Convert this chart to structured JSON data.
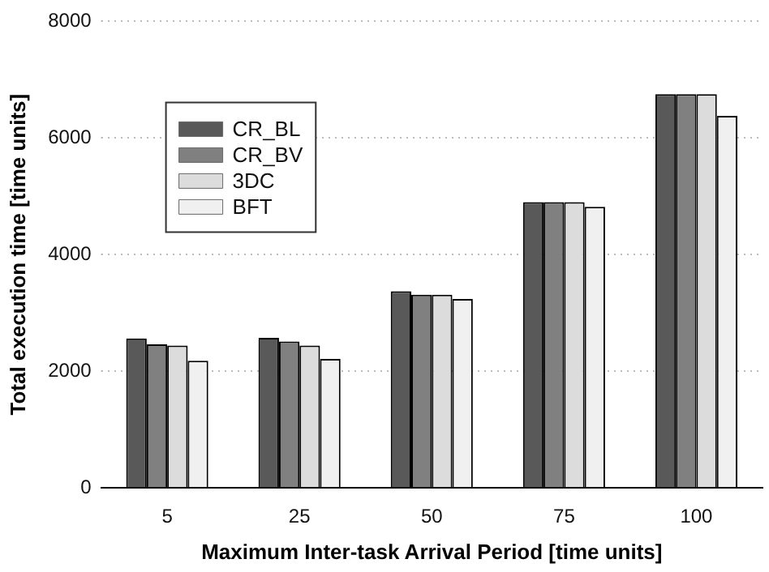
{
  "chart_data": {
    "type": "bar",
    "xlabel": "Maximum Inter-task Arrival Period [time units]",
    "ylabel": "Total execution time [time units]",
    "categories": [
      "5",
      "25",
      "50",
      "75",
      "100"
    ],
    "series": [
      {
        "name": "CR_BL",
        "color": "#595959",
        "values": [
          2560,
          2570,
          3370,
          4900,
          6750
        ]
      },
      {
        "name": "CR_BV",
        "color": "#808080",
        "values": [
          2460,
          2510,
          3310,
          4900,
          6750
        ]
      },
      {
        "name": "3DC",
        "color": "#dcdcdc",
        "values": [
          2440,
          2440,
          3310,
          4900,
          6750
        ]
      },
      {
        "name": "BFT",
        "color": "#f0f0f0",
        "values": [
          2180,
          2210,
          3240,
          4820,
          6380
        ]
      }
    ],
    "ylim": [
      0,
      8000
    ],
    "yticks": [
      0,
      2000,
      4000,
      6000,
      8000
    ],
    "grid": "y",
    "legend": "top left"
  }
}
